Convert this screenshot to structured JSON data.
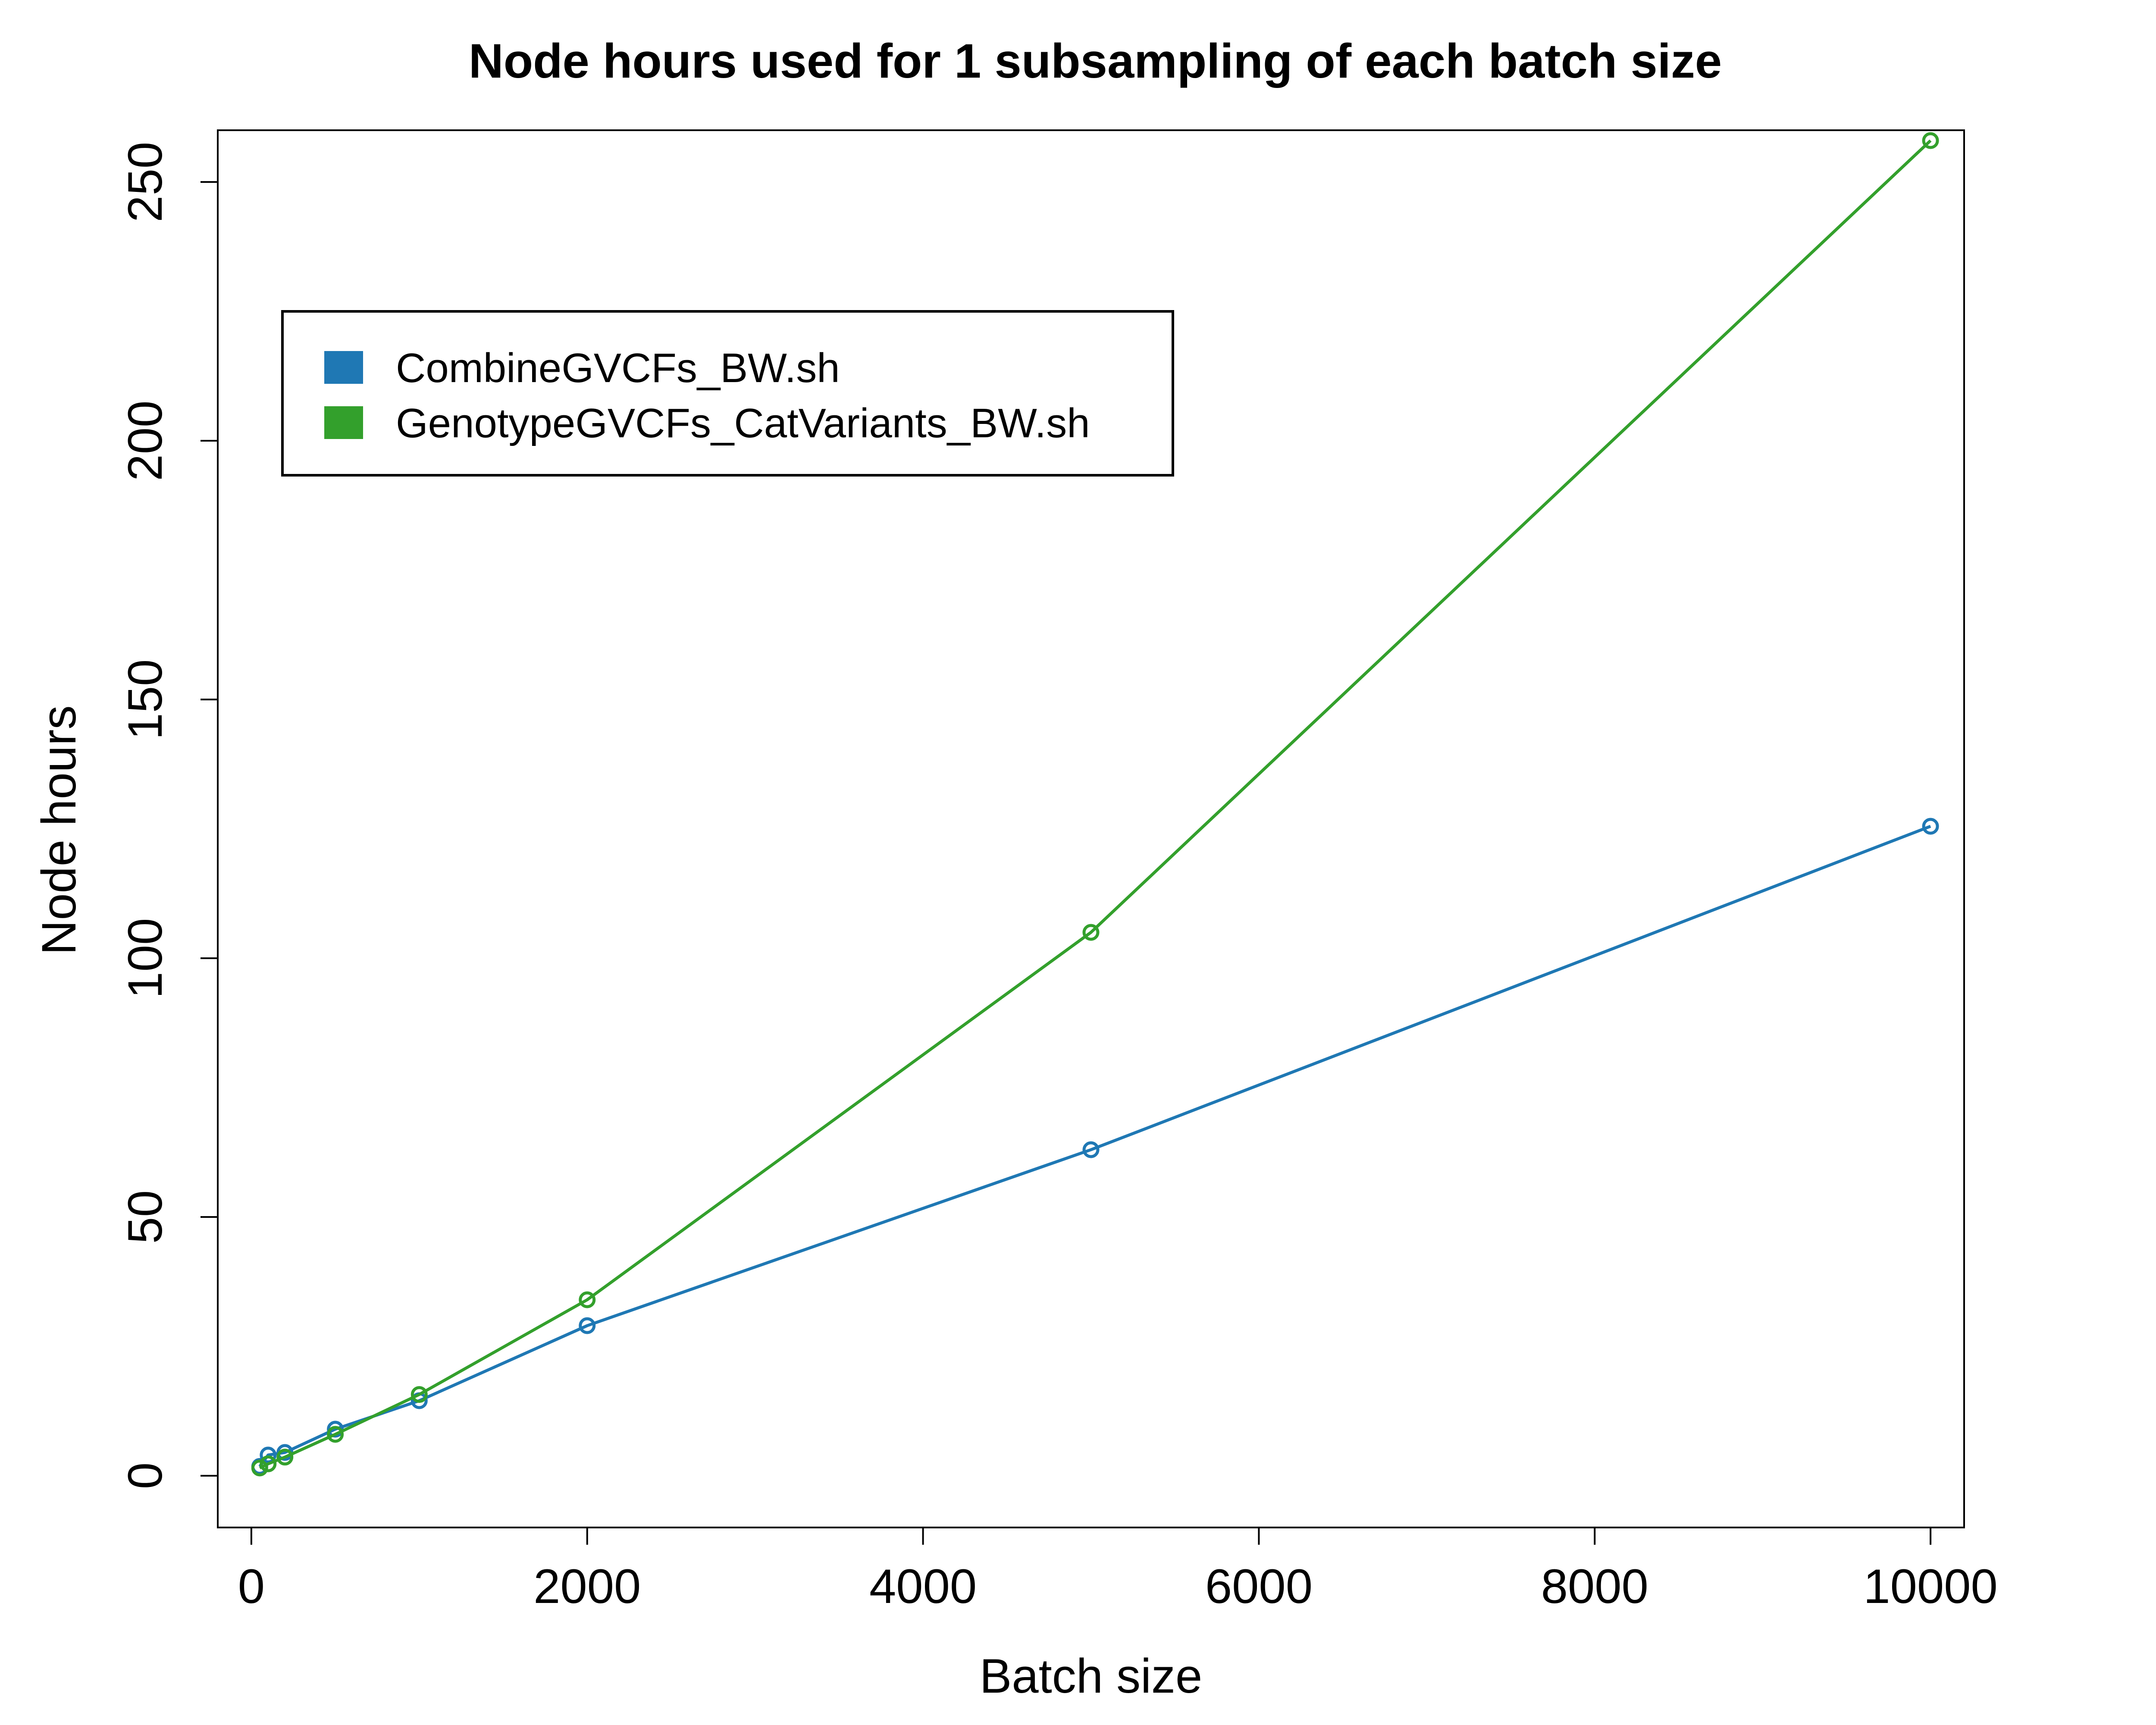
{
  "chart_data": {
    "type": "line",
    "title": "Node hours used for 1 subsampling of each batch size",
    "xlabel": "Batch size",
    "ylabel": "Node hours",
    "xlim": [
      -200,
      10200
    ],
    "ylim": [
      -10,
      260
    ],
    "xticks": [
      0,
      2000,
      4000,
      6000,
      8000,
      10000
    ],
    "yticks": [
      0,
      50,
      100,
      150,
      200,
      250
    ],
    "grid": false,
    "legend_position": "top-left",
    "series": [
      {
        "name": "CombineGVCFs_BW.sh",
        "color": "#1f78b4",
        "x": [
          50,
          100,
          200,
          500,
          1000,
          2000,
          5000,
          10000
        ],
        "y": [
          1.8,
          4.0,
          4.5,
          9.0,
          14.5,
          29,
          63,
          125.5
        ]
      },
      {
        "name": "GenotypeGVCFs_CatVariants_BW.sh",
        "color": "#33a02c",
        "x": [
          50,
          100,
          200,
          500,
          1000,
          2000,
          5000,
          10000
        ],
        "y": [
          1.5,
          2.3,
          3.6,
          8.0,
          15.7,
          34,
          105,
          258
        ]
      }
    ]
  }
}
